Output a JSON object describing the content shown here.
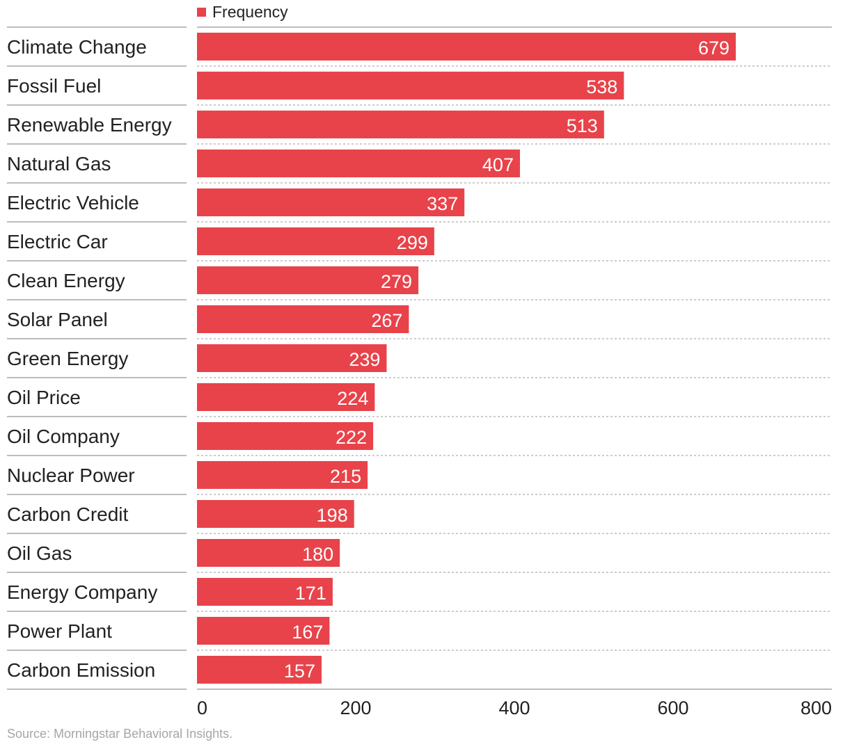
{
  "chart_data": {
    "type": "bar",
    "orientation": "horizontal",
    "categories": [
      "Climate Change",
      "Fossil Fuel",
      "Renewable Energy",
      "Natural Gas",
      "Electric Vehicle",
      "Electric Car",
      "Clean Energy",
      "Solar Panel",
      "Green Energy",
      "Oil Price",
      "Oil Company",
      "Nuclear Power",
      "Carbon Credit",
      "Oil Gas",
      "Energy Company",
      "Power Plant",
      "Carbon Emission"
    ],
    "series": [
      {
        "name": "Frequency",
        "values": [
          679,
          538,
          513,
          407,
          337,
          299,
          279,
          267,
          239,
          224,
          222,
          215,
          198,
          180,
          171,
          167,
          157
        ]
      }
    ],
    "xlim": [
      0,
      800
    ],
    "xticks": [
      "0",
      "200",
      "400",
      "600",
      "800"
    ],
    "legend_position": "top-left",
    "grid": false,
    "bar_color": "#e8434a",
    "data_label_color": "#ffffff",
    "text_color": "#222222"
  },
  "source": "Source: Morningstar Behavioral Insights."
}
